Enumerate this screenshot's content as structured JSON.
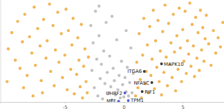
{
  "chart_data": {
    "type": "scatter",
    "xlim": [
      -10.5,
      8.5
    ],
    "xticks": [
      -5,
      0,
      5
    ],
    "ylim": [
      0,
      10
    ],
    "yticks": [],
    "tick_labels": "x",
    "grid": false,
    "series": [
      {
        "color": "#b5b5b5",
        "x": [
          -2.8,
          -2.7,
          -2.6,
          -2.5,
          -2.4,
          -2.3,
          -2.2,
          -2.1,
          -2.0,
          -1.9,
          -1.8,
          -1.7,
          -1.6,
          -1.5,
          -1.4,
          -1.3,
          -1.2,
          -1.1,
          -1.0,
          -0.9,
          -0.8,
          -0.7,
          -0.6,
          -0.5,
          -0.4,
          -0.3,
          -0.2,
          -0.1,
          0.0,
          0.1,
          0.2,
          0.3,
          0.4,
          0.5,
          0.6,
          0.7,
          0.8,
          -2.1,
          -1.0,
          0.2
        ],
        "values": [
          7.5,
          3.1,
          5.8,
          1.4,
          8.9,
          4.2,
          0.6,
          6.5,
          2.3,
          3.7,
          0.3,
          5.0,
          1.8,
          7.8,
          2.9,
          0.9,
          4.5,
          1.5,
          0.2,
          3.3,
          2.1,
          0.7,
          6.1,
          1.2,
          2.6,
          0.4,
          4.0,
          1.7,
          0.5,
          2.4,
          1.0,
          3.4,
          0.6,
          1.9,
          5.3,
          0.9,
          2.8,
          9.4,
          8.4,
          7.0
        ]
      },
      {
        "color": "#eea531",
        "x": [
          -9.8,
          -9.5,
          -9.2,
          -9.0,
          -8.8,
          -8.6,
          -8.4,
          -8.2,
          -8.0,
          -7.8,
          -7.6,
          -7.5,
          -7.3,
          -7.1,
          -7.0,
          -6.8,
          -6.6,
          -6.5,
          -6.3,
          -6.2,
          -6.0,
          -5.9,
          -5.8,
          -5.6,
          -5.5,
          -5.3,
          -5.2,
          -5.0,
          -4.9,
          -4.8,
          -4.7,
          -4.5,
          -4.4,
          -4.3,
          -4.2,
          -4.0,
          -3.9,
          -3.8,
          -3.7,
          -3.6,
          -3.5,
          -3.4,
          -3.3,
          -3.2,
          -3.1,
          -3.0,
          -9.9,
          -8.5,
          -7.7,
          -6.9
        ],
        "values": [
          5.2,
          6.8,
          4.1,
          7.9,
          3.3,
          5.9,
          8.6,
          2.6,
          6.4,
          4.8,
          9.3,
          3.6,
          7.2,
          5.5,
          2.1,
          8.1,
          4.3,
          6.0,
          9.6,
          3.0,
          7.5,
          1.6,
          5.1,
          8.8,
          3.9,
          6.7,
          2.4,
          4.6,
          9.1,
          1.2,
          7.0,
          3.2,
          5.6,
          8.2,
          0.8,
          2.7,
          6.3,
          4.1,
          1.5,
          7.6,
          0.4,
          3.5,
          5.2,
          2.0,
          0.9,
          4.4,
          2.0,
          1.4,
          0.6,
          0.9
        ]
      },
      {
        "color": "#eea531",
        "x": [
          1.0,
          1.1,
          1.2,
          1.3,
          1.4,
          1.5,
          1.6,
          1.7,
          1.8,
          1.9,
          2.0,
          2.1,
          2.2,
          2.3,
          2.4,
          2.5,
          2.6,
          2.7,
          2.8,
          2.9,
          3.0,
          3.1,
          3.2,
          3.3,
          3.4,
          3.5,
          3.6,
          3.7,
          3.8,
          3.9,
          4.0,
          4.1,
          4.2,
          4.3,
          4.4,
          4.5,
          4.6,
          4.7,
          4.8,
          4.9,
          5.0,
          5.1,
          5.2,
          5.3,
          5.4,
          5.5,
          5.6,
          5.7,
          5.8,
          5.9,
          6.0,
          6.1,
          6.2,
          6.3,
          6.4,
          6.5,
          6.6,
          6.7,
          6.8,
          6.9,
          7.0,
          7.2,
          7.4,
          7.6,
          7.8,
          8.0,
          8.2,
          8.4
        ],
        "values": [
          0.6,
          3.9,
          1.4,
          6.7,
          2.2,
          0.4,
          4.6,
          8.2,
          1.8,
          3.0,
          5.6,
          0.9,
          7.4,
          2.6,
          4.2,
          9.0,
          1.3,
          6.0,
          3.4,
          8.0,
          2.0,
          5.0,
          0.7,
          6.9,
          2.9,
          9.5,
          4.4,
          1.6,
          7.7,
          3.7,
          5.8,
          2.4,
          8.6,
          4.9,
          1.1,
          6.5,
          3.2,
          9.2,
          5.3,
          2.0,
          7.1,
          4.0,
          8.9,
          2.8,
          6.0,
          4.7,
          9.7,
          3.5,
          7.6,
          5.5,
          2.5,
          8.3,
          4.3,
          6.8,
          3.1,
          9.0,
          5.1,
          7.3,
          4.0,
          6.2,
          8.5,
          5.7,
          3.6,
          7.0,
          4.8,
          6.3,
          5.4,
          7.8
        ]
      },
      {
        "colors": [
          "#3a3a3a",
          "#3a3a3a",
          "#3a3a3a",
          "#3a3a3a",
          "#5b5bd8",
          "#5b5bd8",
          "#5b5bd8"
        ],
        "labels": [
          "ITGA6",
          "MAPK10",
          "NFASC",
          "RIF1",
          "UHRF2",
          "MFF",
          "TPM1"
        ],
        "x": [
          1.74,
          3.2,
          2.38,
          1.56,
          0.09,
          -0.44,
          0.38
        ],
        "values": [
          3.0,
          3.74,
          1.9,
          1.02,
          0.88,
          0.07,
          0.14
        ]
      }
    ]
  }
}
